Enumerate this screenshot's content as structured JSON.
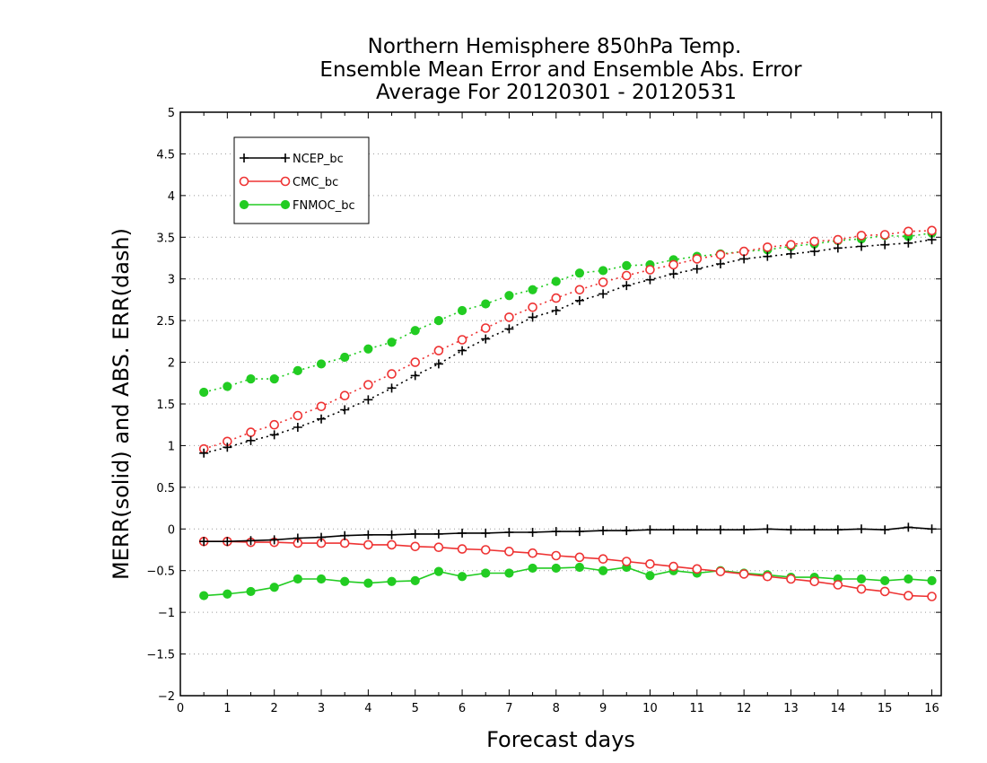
{
  "chart_data": {
    "type": "line",
    "title_lines": [
      "Northern Hemisphere 850hPa Temp.",
      "Ensemble Mean Error and Ensemble Abs. Error",
      "Average For 20120301 - 20120531"
    ],
    "xlabel": "Forecast days",
    "ylabel": "MERR(solid) and ABS. ERR(dash)",
    "xlim": [
      0,
      16.2
    ],
    "ylim": [
      -2,
      5
    ],
    "x_ticks": [
      "0",
      "1",
      "2",
      "3",
      "4",
      "5",
      "6",
      "7",
      "8",
      "9",
      "10",
      "11",
      "12",
      "13",
      "14",
      "15",
      "16"
    ],
    "y_ticks": [
      "5",
      "4.5",
      "4",
      "3.5",
      "3",
      "2.5",
      "2",
      "1.5",
      "1",
      "0.5",
      "0",
      "−0.5",
      "−1",
      "−1.5",
      "−2"
    ],
    "grid": "horizontal-dotted",
    "legend_position": "top-left",
    "x": [
      0.5,
      1,
      1.5,
      2,
      2.5,
      3,
      3.5,
      4,
      4.5,
      5,
      5.5,
      6,
      6.5,
      7,
      7.5,
      8,
      8.5,
      9,
      9.5,
      10,
      10.5,
      11,
      11.5,
      12,
      12.5,
      13,
      13.5,
      14,
      14.5,
      15,
      15.5,
      16
    ],
    "series": [
      {
        "name": "NCEP_bc",
        "color": "#000000",
        "marker": "plus",
        "merr": [
          -0.15,
          -0.15,
          -0.14,
          -0.13,
          -0.11,
          -0.1,
          -0.08,
          -0.07,
          -0.07,
          -0.06,
          -0.06,
          -0.05,
          -0.05,
          -0.04,
          -0.04,
          -0.03,
          -0.03,
          -0.02,
          -0.02,
          -0.01,
          -0.01,
          -0.01,
          -0.01,
          -0.01,
          0.0,
          -0.01,
          -0.01,
          -0.01,
          0.0,
          -0.01,
          0.02,
          0.0
        ],
        "abs_err": [
          0.91,
          0.98,
          1.06,
          1.13,
          1.22,
          1.32,
          1.43,
          1.55,
          1.69,
          1.84,
          1.98,
          2.14,
          2.28,
          2.4,
          2.54,
          2.62,
          2.74,
          2.82,
          2.92,
          2.99,
          3.06,
          3.12,
          3.18,
          3.24,
          3.27,
          3.3,
          3.33,
          3.37,
          3.39,
          3.41,
          3.43,
          3.47
        ]
      },
      {
        "name": "CMC_bc",
        "color": "#ee3333",
        "marker": "open-circle",
        "merr": [
          -0.15,
          -0.15,
          -0.16,
          -0.16,
          -0.17,
          -0.17,
          -0.17,
          -0.19,
          -0.19,
          -0.21,
          -0.22,
          -0.24,
          -0.25,
          -0.27,
          -0.29,
          -0.32,
          -0.34,
          -0.36,
          -0.39,
          -0.42,
          -0.45,
          -0.48,
          -0.51,
          -0.54,
          -0.57,
          -0.6,
          -0.63,
          -0.67,
          -0.72,
          -0.75,
          -0.8,
          -0.81
        ],
        "abs_err": [
          0.96,
          1.05,
          1.16,
          1.25,
          1.36,
          1.47,
          1.6,
          1.73,
          1.86,
          2.0,
          2.14,
          2.27,
          2.41,
          2.54,
          2.66,
          2.77,
          2.87,
          2.96,
          3.04,
          3.11,
          3.17,
          3.24,
          3.29,
          3.33,
          3.38,
          3.41,
          3.45,
          3.47,
          3.52,
          3.53,
          3.57,
          3.58
        ]
      },
      {
        "name": "FNMOC_bc",
        "color": "#22cc22",
        "marker": "filled-circle",
        "merr": [
          -0.8,
          -0.78,
          -0.75,
          -0.7,
          -0.6,
          -0.6,
          -0.63,
          -0.65,
          -0.63,
          -0.62,
          -0.51,
          -0.57,
          -0.53,
          -0.53,
          -0.47,
          -0.47,
          -0.46,
          -0.5,
          -0.46,
          -0.56,
          -0.5,
          -0.53,
          -0.5,
          -0.53,
          -0.55,
          -0.58,
          -0.58,
          -0.6,
          -0.6,
          -0.62,
          -0.6,
          -0.62
        ],
        "abs_err": [
          1.64,
          1.71,
          1.8,
          1.8,
          1.9,
          1.98,
          2.06,
          2.16,
          2.24,
          2.38,
          2.5,
          2.62,
          2.7,
          2.8,
          2.87,
          2.97,
          3.07,
          3.1,
          3.16,
          3.17,
          3.23,
          3.27,
          3.3,
          3.33,
          3.35,
          3.39,
          3.42,
          3.46,
          3.48,
          3.52,
          3.51,
          3.55
        ]
      }
    ]
  }
}
